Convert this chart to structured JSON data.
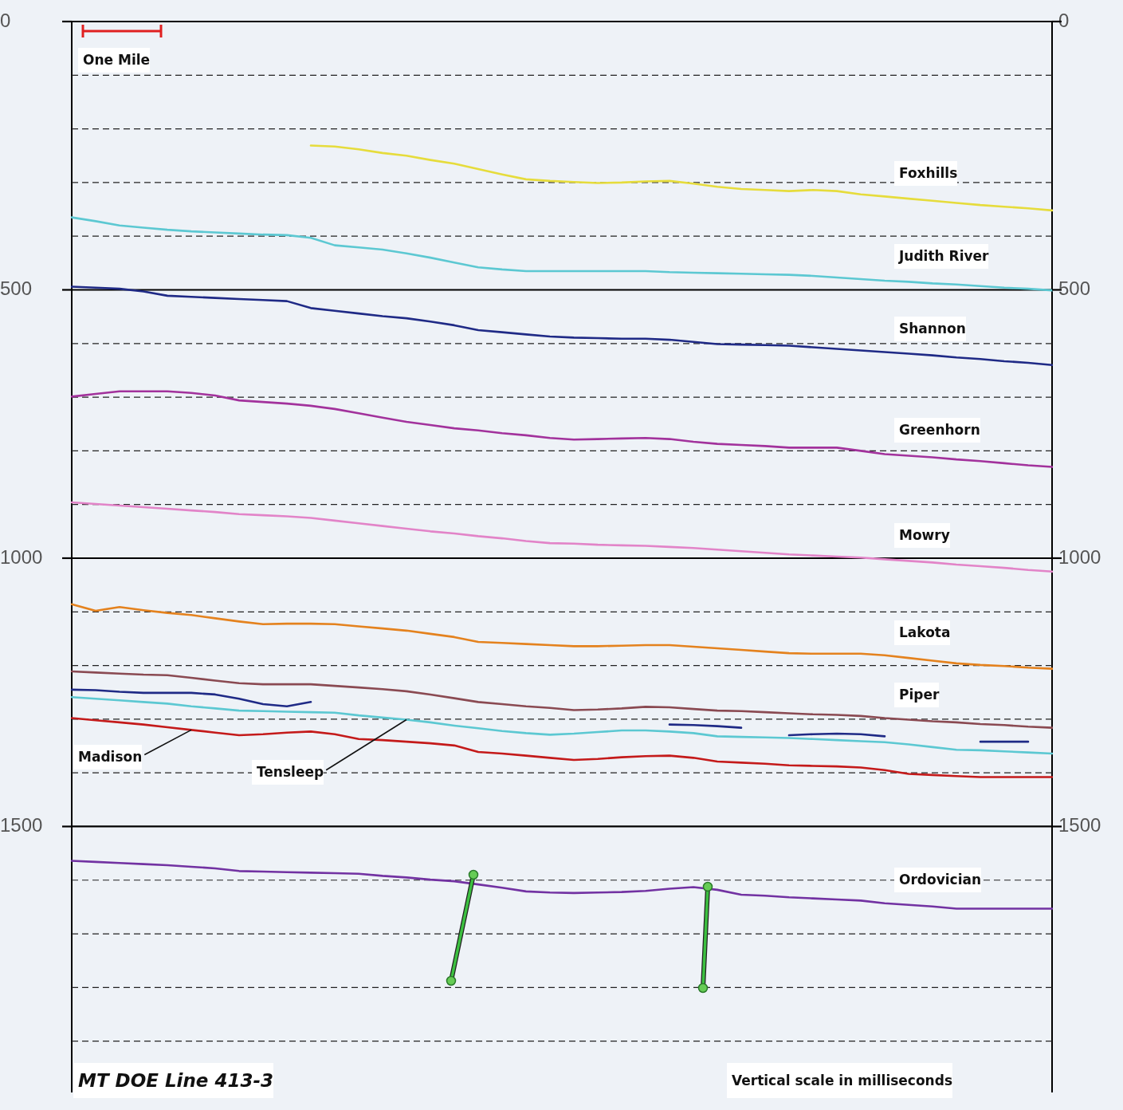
{
  "chart_data": {
    "type": "line",
    "categories": [
      null,
      null,
      null,
      null,
      null,
      null,
      null,
      null,
      null,
      null,
      null,
      null,
      null,
      null,
      null,
      null,
      null,
      null,
      null,
      null,
      null,
      null,
      null,
      null,
      null,
      null,
      null,
      null,
      null,
      null,
      null,
      null,
      null,
      null,
      null,
      null,
      null,
      null,
      null,
      null,
      null,
      null
    ],
    "ylim": [
      1995,
      0
    ],
    "yticks": [
      0,
      {
        "value": 100,
        "label": null
      },
      {
        "value": 200,
        "label": null
      },
      {
        "value": 300,
        "label": null
      },
      {
        "value": 400,
        "label": null
      },
      500,
      {
        "value": 600,
        "label": null
      },
      {
        "value": 700,
        "label": null
      },
      {
        "value": 800,
        "label": null
      },
      {
        "value": 900,
        "label": null
      },
      1000,
      {
        "value": 1100,
        "label": null
      },
      {
        "value": 1200,
        "label": null
      },
      {
        "value": 1300,
        "label": null
      },
      {
        "value": 1400,
        "label": null
      },
      1500,
      {
        "value": 1600,
        "label": null
      },
      {
        "value": 1700,
        "label": null
      },
      {
        "value": 1800,
        "label": null
      },
      {
        "value": 1900,
        "label": null
      }
    ],
    "y2lim": [
      1995,
      0
    ],
    "y2ticks": [
      0,
      500,
      1000,
      1500
    ],
    "tick_labels": "y",
    "grid": "y",
    "legend": false,
    "annotations": [
      "One Mile",
      "MT DOE Line 413-3",
      "Vertical scale in milliseconds"
    ],
    "series": [
      {
        "name": "Foxhills",
        "color": "#e6dc3c",
        "values": [
          null,
          null,
          null,
          null,
          null,
          null,
          null,
          null,
          null,
          null,
          231,
          233,
          238,
          245,
          250,
          258,
          265,
          275,
          285,
          294,
          297,
          299,
          301,
          300,
          298,
          297,
          302,
          308,
          312,
          314,
          316,
          314,
          316,
          322,
          326,
          330,
          334,
          338,
          342,
          345,
          348,
          352
        ]
      },
      {
        "name": "Judith River",
        "color": "#5cc8d2",
        "values": [
          365,
          372,
          380,
          384,
          388,
          391,
          393,
          395,
          397,
          398,
          403,
          417,
          421,
          425,
          432,
          440,
          449,
          458,
          462,
          465,
          465,
          465,
          465,
          465,
          465,
          467,
          468,
          469,
          470,
          471,
          472,
          474,
          477,
          480,
          483,
          485,
          488,
          490,
          493,
          496,
          498,
          501
        ]
      },
      {
        "name": "Shannon",
        "color": "#1f2a86",
        "values": [
          494,
          496,
          498,
          503,
          511,
          513,
          515,
          517,
          519,
          521,
          534,
          539,
          544,
          549,
          553,
          559,
          566,
          575,
          579,
          583,
          587,
          589,
          590,
          591,
          591,
          593,
          597,
          601,
          602,
          603,
          604,
          607,
          610,
          613,
          616,
          619,
          622,
          626,
          629,
          633,
          636,
          640
        ]
      },
      {
        "name": "Greenhorn",
        "color": "#a2329c",
        "values": [
          699,
          694,
          689,
          689,
          689,
          692,
          697,
          706,
          709,
          712,
          716,
          722,
          730,
          738,
          746,
          752,
          758,
          762,
          767,
          771,
          776,
          779,
          778,
          777,
          776,
          778,
          783,
          787,
          789,
          791,
          794,
          794,
          794,
          800,
          806,
          809,
          812,
          816,
          819,
          823,
          827,
          830
        ]
      },
      {
        "name": "Mowry",
        "color": "#e284c8",
        "values": [
          896,
          899,
          902,
          905,
          908,
          911,
          914,
          918,
          920,
          922,
          925,
          930,
          935,
          940,
          945,
          950,
          954,
          959,
          963,
          968,
          972,
          973,
          975,
          976,
          977,
          979,
          981,
          984,
          987,
          990,
          993,
          995,
          997,
          999,
          1002,
          1005,
          1008,
          1012,
          1015,
          1018,
          1022,
          1025
        ]
      },
      {
        "name": "Lakota",
        "color": "#e4821e",
        "values": [
          1086,
          1098,
          1091,
          1097,
          1102,
          1106,
          1112,
          1118,
          1123,
          1122,
          1122,
          1123,
          1127,
          1131,
          1135,
          1141,
          1147,
          1156,
          1158,
          1160,
          1162,
          1164,
          1164,
          1163,
          1162,
          1162,
          1165,
          1168,
          1171,
          1174,
          1177,
          1178,
          1178,
          1178,
          1181,
          1186,
          1191,
          1196,
          1199,
          1201,
          1204,
          1206
        ]
      },
      {
        "name": "Piper",
        "color": "#8a4a52",
        "values": [
          1211,
          1213,
          1215,
          1217,
          1218,
          1223,
          1228,
          1233,
          1235,
          1235,
          1235,
          1238,
          1241,
          1244,
          1248,
          1254,
          1261,
          1268,
          1272,
          1276,
          1279,
          1283,
          1282,
          1280,
          1277,
          1278,
          1281,
          1284,
          1285,
          1287,
          1289,
          1291,
          1292,
          1294,
          1298,
          1301,
          1304,
          1306,
          1309,
          1311,
          1314,
          1316
        ]
      },
      {
        "color": "#1f2a86",
        "values": [
          1245,
          1246,
          1249,
          1251,
          1251,
          1251,
          1254,
          1262,
          1272,
          1276,
          1268,
          null,
          null,
          null,
          null,
          null,
          null,
          null,
          null,
          null,
          null,
          null,
          null,
          null,
          null,
          1310,
          1311,
          1313,
          1316,
          null,
          1330,
          1328,
          1327,
          1328,
          1332,
          null,
          null,
          null,
          1342,
          1342,
          1342,
          null
        ]
      },
      {
        "name": "Tensleep",
        "color": "#5cc8d2",
        "values": [
          1259,
          1262,
          1265,
          1268,
          1271,
          1276,
          1280,
          1284,
          1285,
          1286,
          1287,
          1288,
          1293,
          1297,
          1301,
          1306,
          1312,
          1317,
          1322,
          1326,
          1329,
          1327,
          1324,
          1321,
          1321,
          1323,
          1326,
          1332,
          1333,
          1334,
          1335,
          1337,
          1339,
          1341,
          1343,
          1347,
          1352,
          1357,
          1358,
          1360,
          1362,
          1364
        ]
      },
      {
        "name": "Madison",
        "color": "#c41a1a",
        "values": [
          1298,
          1302,
          1306,
          1310,
          1315,
          1320,
          1325,
          1330,
          1328,
          1325,
          1323,
          1328,
          1337,
          1339,
          1342,
          1345,
          1349,
          1361,
          1364,
          1368,
          1372,
          1376,
          1374,
          1371,
          1369,
          1368,
          1372,
          1379,
          1381,
          1383,
          1386,
          1387,
          1388,
          1390,
          1395,
          1402,
          1404,
          1406,
          1408,
          1408,
          1408,
          1408
        ]
      },
      {
        "name": "Ordovician",
        "color": "#7232a2",
        "values": [
          1564,
          1566,
          1568,
          1570,
          1572,
          1575,
          1578,
          1583,
          1584,
          1585,
          1586,
          1587,
          1588,
          1592,
          1595,
          1599,
          1602,
          1608,
          1614,
          1621,
          1623,
          1624,
          1623,
          1622,
          1620,
          1616,
          1613,
          1618,
          1627,
          1629,
          1632,
          1634,
          1636,
          1638,
          1643,
          1646,
          1649,
          1653,
          1653,
          1653,
          1653,
          1653
        ]
      }
    ]
  }
}
